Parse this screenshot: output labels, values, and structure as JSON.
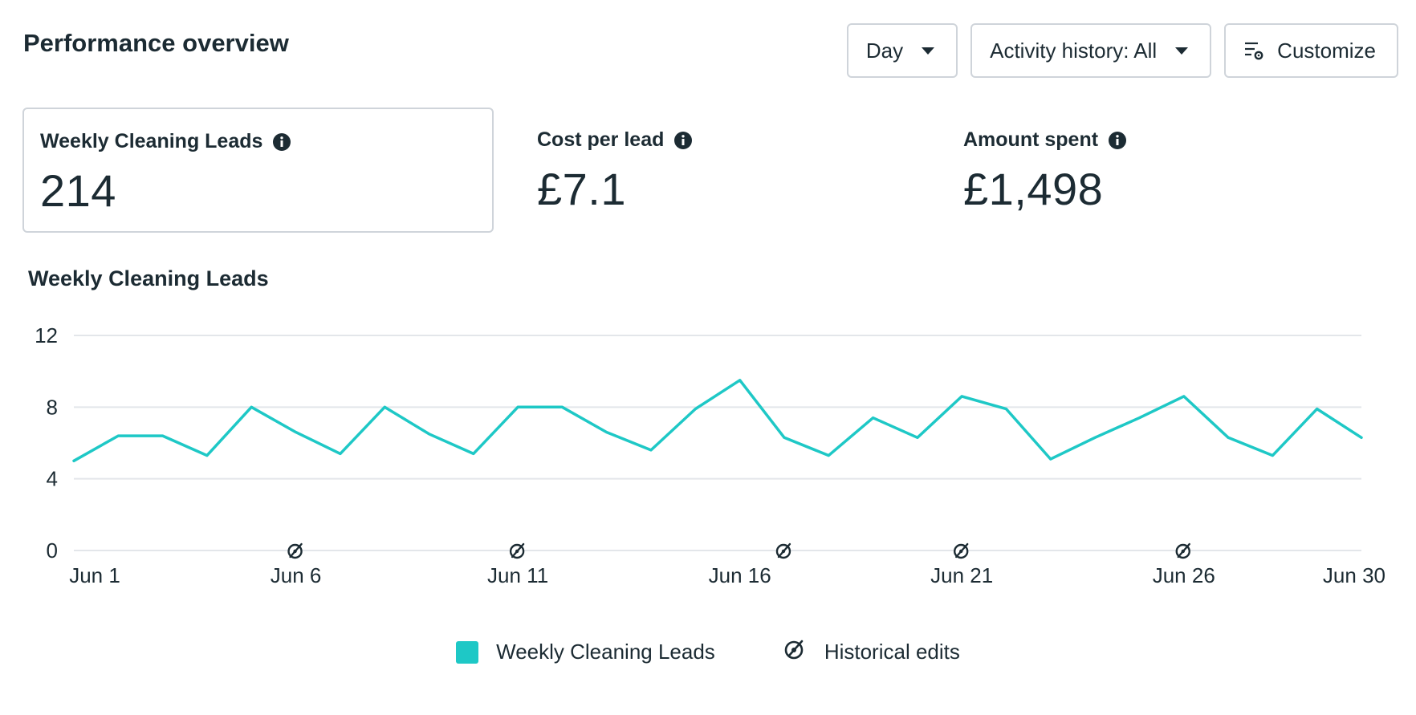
{
  "header": {
    "title": "Performance overview"
  },
  "toolbar": {
    "day_label": "Day",
    "activity_label": "Activity history: All",
    "customize_label": "Customize"
  },
  "metrics": [
    {
      "label": "Weekly Cleaning Leads",
      "value": "214",
      "selected": true
    },
    {
      "label": "Cost per lead",
      "value": "£7.1"
    },
    {
      "label": "Amount spent",
      "value": "£1,498"
    }
  ],
  "chart": {
    "title": "Weekly Cleaning Leads"
  },
  "legend": {
    "series_label": "Weekly Cleaning Leads",
    "edits_label": "Historical edits"
  },
  "colors": {
    "series": "#1ec8c6",
    "grid": "#e3e6ea",
    "text": "#1c2b33",
    "border": "#cfd4da"
  },
  "chart_data": {
    "type": "line",
    "x": [
      "Jun 1",
      "Jun 2",
      "Jun 3",
      "Jun 4",
      "Jun 5",
      "Jun 6",
      "Jun 7",
      "Jun 8",
      "Jun 9",
      "Jun 10",
      "Jun 11",
      "Jun 12",
      "Jun 13",
      "Jun 14",
      "Jun 15",
      "Jun 16",
      "Jun 17",
      "Jun 18",
      "Jun 19",
      "Jun 20",
      "Jun 21",
      "Jun 22",
      "Jun 23",
      "Jun 24",
      "Jun 25",
      "Jun 26",
      "Jun 27",
      "Jun 28",
      "Jun 29",
      "Jun 30"
    ],
    "x_tick_labels": [
      "Jun 1",
      "Jun 6",
      "Jun 11",
      "Jun 16",
      "Jun 21",
      "Jun 26",
      "Jun 30"
    ],
    "series": [
      {
        "name": "Weekly Cleaning Leads",
        "values": [
          5,
          6.4,
          6.4,
          5.3,
          8,
          6.6,
          5.4,
          8,
          6.5,
          5.4,
          8,
          8,
          6.6,
          5.6,
          7.9,
          9.5,
          6.3,
          5.3,
          7.4,
          6.3,
          8.6,
          7.9,
          5.1,
          6.3,
          7.4,
          8.6,
          6.3,
          5.3,
          7.9,
          6.3
        ]
      }
    ],
    "historical_edits": [
      "Jun 6",
      "Jun 11",
      "Jun 17",
      "Jun 21",
      "Jun 26"
    ],
    "y_ticks": [
      0,
      4,
      8,
      12
    ],
    "ylim": [
      0,
      12
    ],
    "grid": true,
    "legend_position": "bottom-center"
  }
}
